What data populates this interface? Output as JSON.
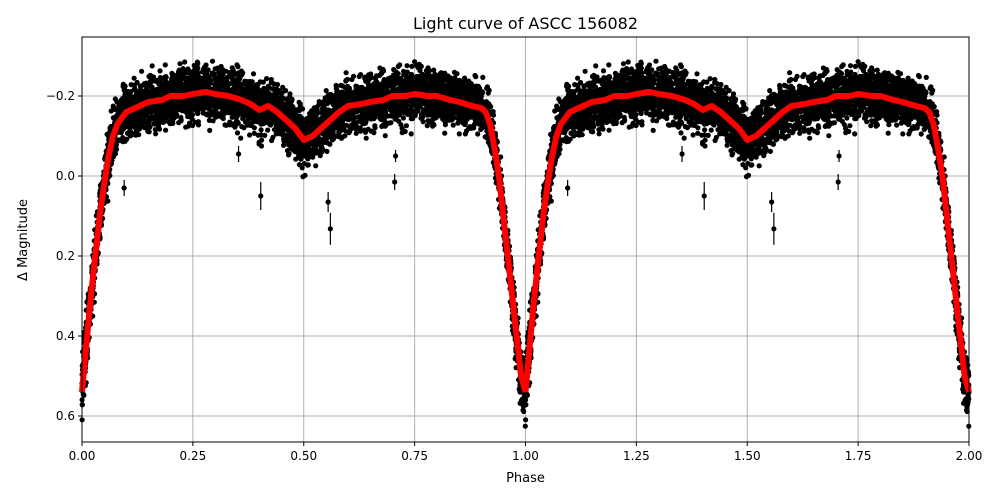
{
  "chart_data": {
    "type": "scatter",
    "title": "Light curve of ASCC 156082",
    "xlabel": "Phase",
    "ylabel": "Δ Magnitude",
    "xlim": [
      0,
      2
    ],
    "ylim": [
      0.665,
      -0.3475
    ],
    "y_inverted": true,
    "grid": true,
    "x_ticks": [
      0,
      0.25,
      0.5,
      0.75,
      1.0,
      1.25,
      1.5,
      1.75,
      2.0
    ],
    "x_tick_labels": [
      "0.00",
      "0.25",
      "0.50",
      "0.75",
      "1.00",
      "1.25",
      "1.50",
      "1.75",
      "2.00"
    ],
    "y_ticks": [
      -0.2,
      0.0,
      0.2,
      0.4,
      0.6
    ],
    "y_tick_labels": [
      "−0.2",
      "0.0",
      "0.2",
      "0.4",
      "0.6"
    ],
    "colors": {
      "data": "#000000",
      "model": "#ff0000",
      "grid": "#b0b0b0"
    },
    "observations_scatter": 0.04,
    "model_curve": {
      "phase": [
        0,
        0.01,
        0.02,
        0.03,
        0.04,
        0.05,
        0.06,
        0.07,
        0.08,
        0.1,
        0.12,
        0.15,
        0.18,
        0.2,
        0.23,
        0.25,
        0.28,
        0.3,
        0.33,
        0.36,
        0.38,
        0.4,
        0.42,
        0.44,
        0.46,
        0.48,
        0.5,
        0.52,
        0.54,
        0.56,
        0.58,
        0.6,
        0.63,
        0.65,
        0.68,
        0.7,
        0.73,
        0.75,
        0.78,
        0.8,
        0.83,
        0.85,
        0.88,
        0.9,
        0.91,
        0.92,
        0.93,
        0.94,
        0.95,
        0.96,
        0.97,
        0.98,
        0.99,
        1.0
      ],
      "mag": [
        0.54,
        0.42,
        0.3,
        0.2,
        0.1,
        0.02,
        -0.05,
        -0.1,
        -0.13,
        -0.16,
        -0.17,
        -0.185,
        -0.19,
        -0.2,
        -0.2,
        -0.205,
        -0.21,
        -0.205,
        -0.2,
        -0.19,
        -0.18,
        -0.165,
        -0.175,
        -0.16,
        -0.14,
        -0.12,
        -0.09,
        -0.1,
        -0.12,
        -0.14,
        -0.16,
        -0.175,
        -0.18,
        -0.185,
        -0.19,
        -0.2,
        -0.2,
        -0.205,
        -0.2,
        -0.2,
        -0.19,
        -0.185,
        -0.175,
        -0.17,
        -0.16,
        -0.13,
        -0.07,
        0.0,
        0.1,
        0.2,
        0.3,
        0.4,
        0.5,
        0.54
      ]
    },
    "outliers": [
      {
        "phase": 0.095,
        "mag": 0.03,
        "err": 0.02
      },
      {
        "phase": 0.353,
        "mag": -0.055,
        "err": 0.02
      },
      {
        "phase": 0.403,
        "mag": 0.05,
        "err": 0.035
      },
      {
        "phase": 0.555,
        "mag": 0.065,
        "err": 0.025
      },
      {
        "phase": 0.56,
        "mag": 0.132,
        "err": 0.04
      },
      {
        "phase": 0.705,
        "mag": 0.015,
        "err": 0.02
      },
      {
        "phase": 0.707,
        "mag": -0.05,
        "err": 0.015
      }
    ]
  }
}
